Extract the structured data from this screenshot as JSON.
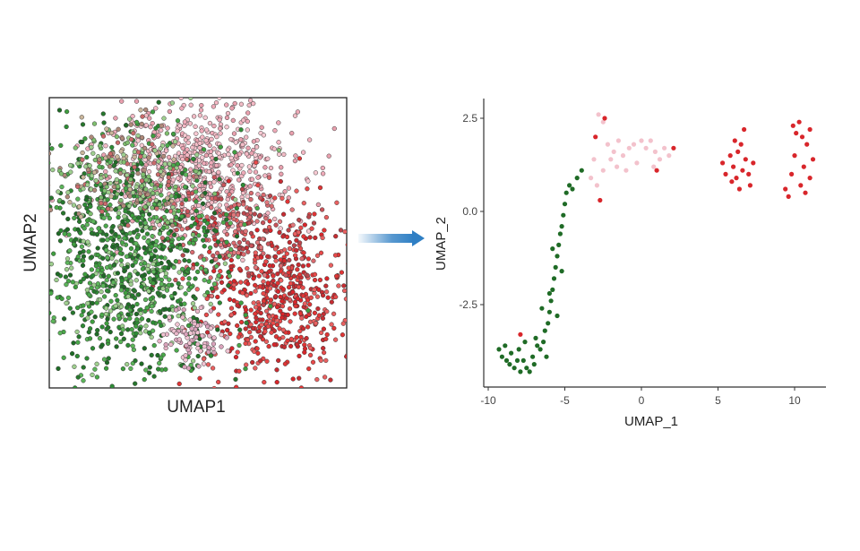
{
  "colors": {
    "dark_green": "#1f6b26",
    "mid_green": "#3f9e3f",
    "light_green": "#9fcf8f",
    "pink": "#f4b8c4",
    "light_pink": "#f3c2cc",
    "red": "#d8262b",
    "dark_red": "#b3343a",
    "arrow": "#2f7fc4",
    "axis": "#333333"
  },
  "chart_data": [
    {
      "type": "scatter",
      "panel": "left",
      "xlabel": "UMAP1",
      "ylabel": "UMAP2",
      "grid": false,
      "ticks": false,
      "legend": "none",
      "groups": [
        {
          "color": "#2e8b35",
          "region": "left-lower"
        },
        {
          "color": "#f4b8c4",
          "region": "upper-middle"
        },
        {
          "color": "#e03535",
          "region": "right-lower"
        }
      ]
    },
    {
      "type": "scatter",
      "panel": "right",
      "xlabel": "UMAP_1",
      "ylabel": "UMAP_2",
      "xlim": [
        -10,
        12
      ],
      "ylim": [
        -4.5,
        2.8
      ],
      "xticks": [
        -10,
        -5,
        0,
        5,
        10
      ],
      "xtick_labels": [
        "-10",
        "-5",
        "0",
        "5",
        "10"
      ],
      "yticks": [
        2.5,
        0.0,
        -2.5
      ],
      "ytick_labels": [
        "2.5",
        "0.0",
        "-2.5"
      ],
      "grid": false,
      "legend": "none",
      "series": [
        {
          "color": "#1f6b26",
          "points": [
            [
              -9.3,
              -3.7
            ],
            [
              -9.1,
              -3.9
            ],
            [
              -8.9,
              -3.6
            ],
            [
              -8.8,
              -4.0
            ],
            [
              -8.6,
              -4.1
            ],
            [
              -8.5,
              -3.8
            ],
            [
              -8.3,
              -4.2
            ],
            [
              -8.1,
              -4.0
            ],
            [
              -8.0,
              -3.7
            ],
            [
              -7.9,
              -4.3
            ],
            [
              -7.7,
              -4.0
            ],
            [
              -7.5,
              -4.2
            ],
            [
              -7.3,
              -4.3
            ],
            [
              -7.1,
              -3.9
            ],
            [
              -7.0,
              -4.1
            ],
            [
              -6.8,
              -3.6
            ],
            [
              -6.6,
              -3.7
            ],
            [
              -6.4,
              -3.5
            ],
            [
              -6.3,
              -3.2
            ],
            [
              -6.1,
              -3.0
            ],
            [
              -6.0,
              -2.7
            ],
            [
              -5.9,
              -2.4
            ],
            [
              -5.8,
              -2.1
            ],
            [
              -5.7,
              -1.8
            ],
            [
              -5.6,
              -1.5
            ],
            [
              -5.5,
              -1.2
            ],
            [
              -5.4,
              -0.9
            ],
            [
              -5.3,
              -0.6
            ],
            [
              -5.2,
              -0.4
            ],
            [
              -5.1,
              -0.1
            ],
            [
              -5.0,
              0.2
            ],
            [
              -4.9,
              0.5
            ],
            [
              -4.7,
              0.7
            ],
            [
              -4.5,
              0.6
            ],
            [
              -4.2,
              0.9
            ],
            [
              -3.9,
              1.1
            ],
            [
              -6.2,
              -3.9
            ],
            [
              -6.0,
              -2.2
            ],
            [
              -5.5,
              -2.8
            ],
            [
              -5.8,
              -1.0
            ],
            [
              -5.2,
              -1.6
            ],
            [
              -6.5,
              -2.6
            ],
            [
              -6.9,
              -3.4
            ],
            [
              -7.6,
              -3.5
            ]
          ]
        },
        {
          "color": "#f3c2cc",
          "points": [
            [
              -2.8,
              2.6
            ],
            [
              -2.5,
              2.4
            ],
            [
              -3.1,
              1.4
            ],
            [
              -2.5,
              1.1
            ],
            [
              -2.0,
              1.4
            ],
            [
              -1.8,
              1.6
            ],
            [
              -1.5,
              1.9
            ],
            [
              -1.2,
              1.5
            ],
            [
              -0.8,
              1.7
            ],
            [
              -0.5,
              1.8
            ],
            [
              0.0,
              1.9
            ],
            [
              0.3,
              1.7
            ],
            [
              0.6,
              1.9
            ],
            [
              0.9,
              1.6
            ],
            [
              1.2,
              1.4
            ],
            [
              1.5,
              1.7
            ],
            [
              -0.3,
              1.3
            ],
            [
              -1.0,
              1.1
            ],
            [
              -2.2,
              1.8
            ],
            [
              0.8,
              1.2
            ],
            [
              -3.3,
              0.9
            ],
            [
              -2.9,
              0.7
            ],
            [
              1.8,
              1.5
            ],
            [
              -1.6,
              1.2
            ]
          ]
        },
        {
          "color": "#d8262b",
          "points": [
            [
              -2.4,
              2.5
            ],
            [
              -3.0,
              2.0
            ],
            [
              -2.7,
              0.3
            ],
            [
              1.0,
              1.1
            ],
            [
              2.1,
              1.7
            ],
            [
              -7.9,
              -3.3
            ],
            [
              5.3,
              1.3
            ],
            [
              5.5,
              1.0
            ],
            [
              5.8,
              1.5
            ],
            [
              6.0,
              1.2
            ],
            [
              6.2,
              0.9
            ],
            [
              6.4,
              0.6
            ],
            [
              6.5,
              1.8
            ],
            [
              6.7,
              2.2
            ],
            [
              6.8,
              1.4
            ],
            [
              7.0,
              1.0
            ],
            [
              7.1,
              0.7
            ],
            [
              6.3,
              1.6
            ],
            [
              5.9,
              0.8
            ],
            [
              6.6,
              1.1
            ],
            [
              7.3,
              1.3
            ],
            [
              6.1,
              1.9
            ],
            [
              9.6,
              0.4
            ],
            [
              9.8,
              1.0
            ],
            [
              10.0,
              1.5
            ],
            [
              10.1,
              2.1
            ],
            [
              10.3,
              2.4
            ],
            [
              10.4,
              0.7
            ],
            [
              10.6,
              1.2
            ],
            [
              10.8,
              1.8
            ],
            [
              11.0,
              0.9
            ],
            [
              11.2,
              1.4
            ],
            [
              9.9,
              2.3
            ],
            [
              10.5,
              2.0
            ],
            [
              9.4,
              0.6
            ],
            [
              10.7,
              0.5
            ],
            [
              11.0,
              2.2
            ]
          ]
        }
      ]
    }
  ]
}
